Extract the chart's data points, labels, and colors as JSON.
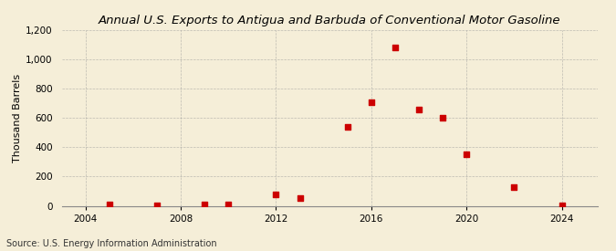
{
  "title": "Annual U.S. Exports to Antigua and Barbuda of Conventional Motor Gasoline",
  "ylabel": "Thousand Barrels",
  "source": "Source: U.S. Energy Information Administration",
  "background_color": "#f5eed8",
  "plot_background_color": "#f5eed8",
  "marker_color": "#cc0000",
  "marker_size": 5,
  "years": [
    2005,
    2007,
    2009,
    2010,
    2012,
    2013,
    2015,
    2016,
    2017,
    2018,
    2019,
    2020,
    2022,
    2024
  ],
  "values": [
    8,
    5,
    10,
    10,
    80,
    55,
    540,
    710,
    1080,
    660,
    600,
    350,
    130,
    5
  ],
  "xlim": [
    2003,
    2025.5
  ],
  "ylim": [
    0,
    1200
  ],
  "yticks": [
    0,
    200,
    400,
    600,
    800,
    1000,
    1200
  ],
  "xticks": [
    2004,
    2008,
    2012,
    2016,
    2020,
    2024
  ],
  "grid_color": "#999999",
  "title_fontsize": 9.5,
  "label_fontsize": 8,
  "tick_fontsize": 7.5,
  "source_fontsize": 7
}
